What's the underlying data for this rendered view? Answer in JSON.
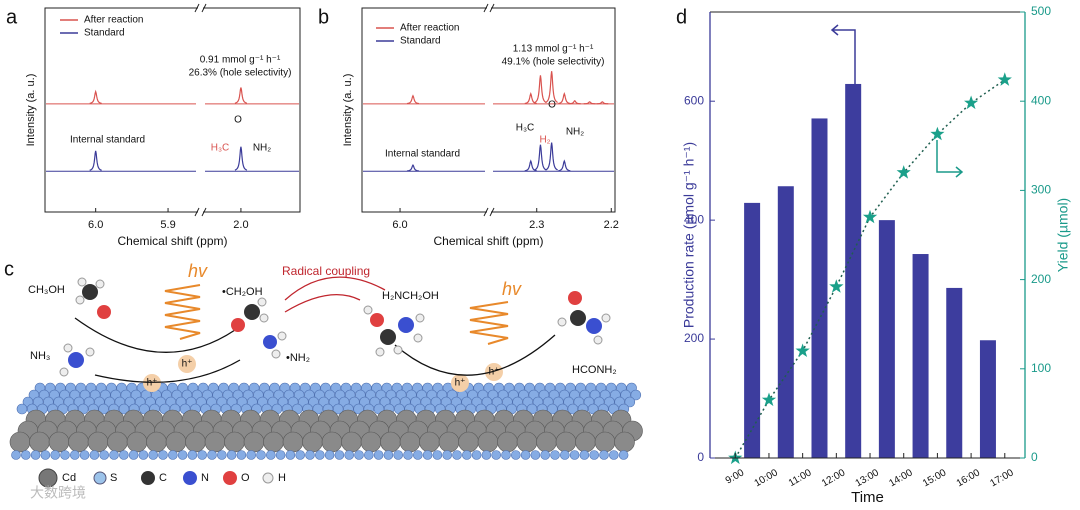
{
  "chart_data": [
    {
      "type": "spectrum",
      "label": "a",
      "xlabel": "Chemical shift (ppm)",
      "ylabel": "Intensity (a. u.)",
      "ylim": [
        0,
        100
      ],
      "segments": [
        {
          "xlim": [
            6.07,
            5.86
          ],
          "xticks": [
            {
              "value": 6,
              "label": "6.0"
            },
            5.9
          ]
        },
        {
          "xlim": [
            2.05,
            1.92
          ],
          "xticks": [
            {
              "value": 2,
              "label": "2.0"
            }
          ]
        }
      ],
      "series": [
        {
          "name": "After reaction",
          "color": "#d9534f",
          "baseline": 53,
          "x": [
            6.0,
            2.0
          ],
          "values": [
            6,
            8
          ]
        },
        {
          "name": "Standard",
          "color": "#3b3b99",
          "baseline": 20,
          "x": [
            6.0,
            2.0
          ],
          "values": [
            10,
            12
          ]
        }
      ],
      "annotations": [
        {
          "text": "0.91 mmol g⁻¹ h⁻¹",
          "color": "#111"
        },
        {
          "text": "26.3% (hole selectivity)",
          "color": "#111"
        },
        {
          "text": "Internal standard",
          "color": "#111"
        },
        {
          "text": "O",
          "color": "#111"
        },
        {
          "text": "H₃C",
          "color": "#d9534f"
        },
        {
          "text": "NH₂",
          "color": "#111"
        }
      ]
    },
    {
      "type": "spectrum",
      "label": "b",
      "xlabel": "Chemical shift (ppm)",
      "ylabel": "Intensity (a. u.)",
      "ylim": [
        0,
        100
      ],
      "segments": [
        {
          "xlim": [
            6.05,
            5.887
          ],
          "xticks": [
            {
              "value": 6,
              "label": "6.0"
            }
          ]
        },
        {
          "xlim": [
            2.36,
            2.195
          ],
          "xticks": [
            2.3,
            2.2
          ]
        }
      ],
      "series": [
        {
          "name": "After reaction",
          "color": "#d9534f",
          "baseline": 53,
          "x": [
            5.983,
            2.308,
            2.295,
            2.28,
            2.263,
            2.249,
            2.229,
            2.212
          ],
          "values": [
            4,
            5,
            14,
            16,
            5,
            1.5,
            1,
            1
          ]
        },
        {
          "name": "Standard",
          "color": "#3b3b99",
          "baseline": 20,
          "x": [
            5.983,
            2.308,
            2.295,
            2.28,
            2.263
          ],
          "values": [
            3,
            5,
            13,
            14,
            5
          ]
        }
      ],
      "annotations": [
        {
          "text": "1.13 mmol g⁻¹ h⁻¹",
          "color": "#111"
        },
        {
          "text": "49.1% (hole selectivity)",
          "color": "#111"
        },
        {
          "text": "Internal standard",
          "color": "#111"
        },
        {
          "text": "O",
          "color": "#111"
        },
        {
          "text": "H₃C",
          "color": "#111"
        },
        {
          "text": "NH₂",
          "color": "#111"
        },
        {
          "text": "H₂",
          "color": "#d9534f"
        }
      ]
    },
    {
      "type": "bar_line",
      "label": "d",
      "xlabel": "Time",
      "ylabel": "Production rate (µmol g⁻¹ h⁻¹)",
      "y2label": "Yield (µmol)",
      "ycolor": "#3b3b99",
      "y2color": "#1a9a8a",
      "xlim": [
        8.25,
        17.6
      ],
      "xticks": [
        {
          "value": 9,
          "label": "9:00"
        },
        {
          "value": 10,
          "label": "10:00"
        },
        {
          "value": 11,
          "label": "11:00"
        },
        {
          "value": 12,
          "label": "12:00"
        },
        {
          "value": 13,
          "label": "13:00"
        },
        {
          "value": 14,
          "label": "14:00"
        },
        {
          "value": 15,
          "label": "15:00"
        },
        {
          "value": 16,
          "label": "16:00"
        },
        {
          "value": 17,
          "label": "17:00"
        }
      ],
      "ylim": [
        0,
        750
      ],
      "yticks": [
        0,
        200,
        400,
        600
      ],
      "y2lim": [
        0,
        500
      ],
      "y2ticks": [
        0,
        100,
        200,
        300,
        400,
        500
      ],
      "series": [
        {
          "kind": "bar",
          "color": "#3d3d9e",
          "x": [
            9.5,
            10.5,
            11.5,
            12.5,
            13.5,
            14.5,
            15.5,
            16.5
          ],
          "values": [
            429,
            457,
            571,
            629,
            400,
            343,
            286,
            198
          ]
        },
        {
          "kind": "line",
          "axis": "y2",
          "color": "#1f5e4f",
          "marker_color": "#1aa08a",
          "x": [
            9,
            10,
            11,
            12,
            13,
            14,
            15,
            16,
            17
          ],
          "values": [
            0,
            65,
            120,
            192,
            270,
            320,
            363,
            398,
            424
          ]
        }
      ]
    }
  ],
  "schematic": {
    "label": "c",
    "texts": [
      "CH₃OH",
      "hv",
      "•CH₂OH",
      "Radical coupling",
      "H₂NCH₂OH",
      "hv",
      "NH₃",
      "h⁺",
      "h⁺",
      "h⁺",
      "h⁺",
      "•NH₂",
      "HCONH₂"
    ],
    "legend": [
      "Cd",
      "S",
      "C",
      "N",
      "O",
      "H"
    ]
  },
  "watermark": "大数跨境"
}
